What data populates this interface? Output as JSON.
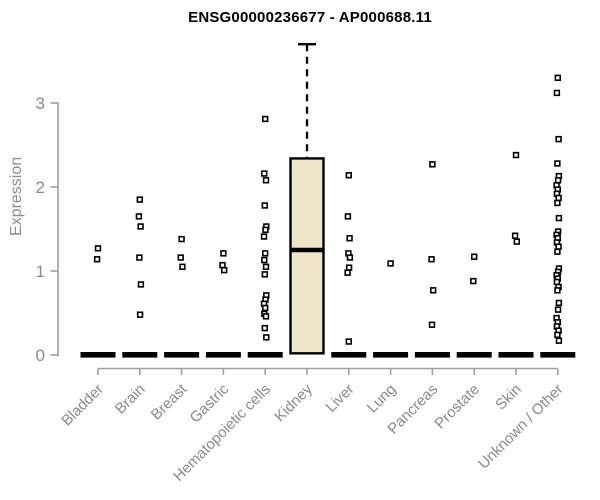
{
  "title": "ENSG00000236677 - AP000688.11",
  "chart_data": {
    "type": "boxplot",
    "title": "ENSG00000236677 - AP000688.11",
    "xlabel": "",
    "ylabel": "Expression",
    "ylim": [
      0,
      3.8
    ],
    "yticks": [
      0,
      1,
      2,
      3
    ],
    "grid": false,
    "legend": false,
    "point_marker": "open-square",
    "categories": [
      "Bladder",
      "Brain",
      "Breast",
      "Gastric",
      "Hematopoietic cells",
      "Kidney",
      "Liver",
      "Lung",
      "Pancreas",
      "Prostate",
      "Skin",
      "Unknown / Other"
    ],
    "series": [
      {
        "category": "Bladder",
        "zero_bar": true,
        "points": [
          1.27,
          1.14
        ]
      },
      {
        "category": "Brain",
        "zero_bar": true,
        "points": [
          1.85,
          1.65,
          1.53,
          1.16,
          0.84,
          0.48
        ]
      },
      {
        "category": "Breast",
        "zero_bar": true,
        "points": [
          1.38,
          1.16,
          1.05
        ]
      },
      {
        "category": "Gastric",
        "zero_bar": true,
        "points": [
          1.21,
          1.07,
          1.01
        ]
      },
      {
        "category": "Hematopoietic cells",
        "zero_bar": true,
        "points": [
          2.81,
          2.16,
          2.08,
          1.78,
          1.53,
          1.49,
          1.41,
          1.21,
          1.13,
          1.05,
          0.96,
          0.71,
          0.66,
          0.61,
          0.56,
          0.49,
          0.46,
          0.32,
          0.21
        ]
      },
      {
        "category": "Kidney",
        "zero_bar": false,
        "points": [],
        "box": {
          "q1": 0.02,
          "median": 1.25,
          "q3": 2.34,
          "whisker_high": 3.7
        }
      },
      {
        "category": "Liver",
        "zero_bar": true,
        "points": [
          2.14,
          1.65,
          1.39,
          1.21,
          1.16,
          1.04,
          0.98,
          0.16
        ]
      },
      {
        "category": "Lung",
        "zero_bar": true,
        "points": [
          1.09
        ]
      },
      {
        "category": "Pancreas",
        "zero_bar": true,
        "points": [
          2.27,
          1.14,
          0.77,
          0.36
        ]
      },
      {
        "category": "Prostate",
        "zero_bar": true,
        "points": [
          1.17,
          0.88
        ]
      },
      {
        "category": "Skin",
        "zero_bar": true,
        "points": [
          2.38,
          1.42,
          1.35
        ]
      },
      {
        "category": "Unknown / Other",
        "zero_bar": true,
        "points": [
          3.3,
          3.12,
          2.57,
          2.28,
          2.13,
          2.08,
          2.02,
          1.97,
          1.92,
          1.87,
          1.81,
          1.63,
          1.47,
          1.43,
          1.39,
          1.34,
          1.29,
          1.23,
          1.03,
          0.99,
          0.95,
          0.91,
          0.87,
          0.81,
          0.77,
          0.62,
          0.54,
          0.44,
          0.39,
          0.34,
          0.29,
          0.24,
          0.17
        ]
      }
    ],
    "colors": {
      "box_fill": "#ece5c7",
      "box_stroke": "#000000",
      "median": "#000000",
      "point_fill": "#ffffff",
      "point_stroke": "#000000",
      "zero_bar": "#000000",
      "axis": "#a0a0a0",
      "tick_label": "#8a8a8a",
      "title": "#000000"
    }
  }
}
